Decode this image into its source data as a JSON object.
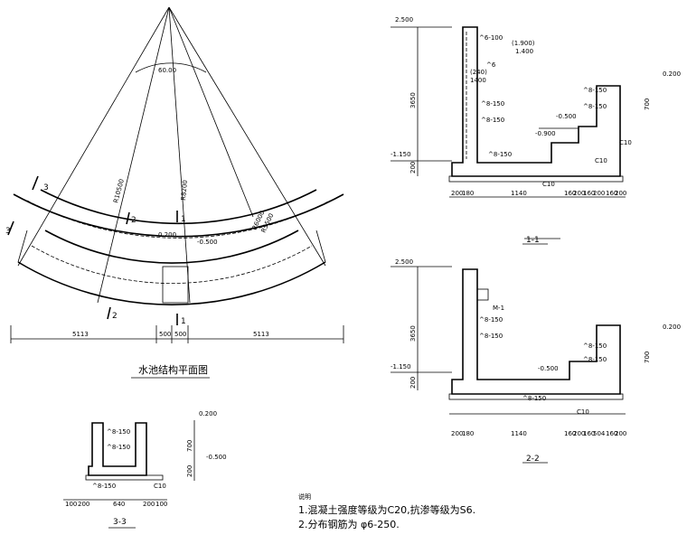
{
  "plan": {
    "angle": "60.00",
    "radii": [
      "R10500",
      "R8200",
      "R6000",
      "R5500"
    ],
    "section_marks": [
      "3",
      "3",
      "2",
      "2",
      "1",
      "1"
    ],
    "levels": [
      "0.200",
      "-0.500"
    ],
    "dims": [
      "5113",
      "500",
      "500",
      "5113"
    ],
    "title": "水池结构平面图"
  },
  "section_1": {
    "title": "1-1",
    "levels": [
      "2.500",
      "-1.150",
      "-0.500",
      "-0.900",
      "0.200"
    ],
    "elevations": [
      "(1.900)",
      "1.400",
      "(240)",
      "1400"
    ],
    "rebar": [
      "^6-100",
      "^6",
      "^8-150",
      "^8-150",
      "^8-150",
      "^8-150",
      "^8-150"
    ],
    "concrete": [
      "C10",
      "C10",
      "C10"
    ],
    "dims_vertical": [
      "3650",
      "200",
      "700"
    ],
    "dims": [
      "200",
      "180",
      "1140",
      "160",
      "200",
      "160",
      "200",
      "160",
      "200"
    ]
  },
  "section_2": {
    "title": "2-2",
    "levels": [
      "2.500",
      "-1.150",
      "-0.500",
      "0.200"
    ],
    "rebar": [
      "^8-150",
      "^8-150",
      "^8-150",
      "^8-150",
      "^8-150"
    ],
    "tag": "M-1",
    "concrete": [
      "C10"
    ],
    "dims_vertical": [
      "3650",
      "200",
      "700"
    ],
    "dims": [
      "200",
      "180",
      "1140",
      "160",
      "200",
      "160",
      "504",
      "160",
      "200"
    ]
  },
  "section_3": {
    "title": "3-3",
    "levels": [
      "0.200",
      "-0.500"
    ],
    "rebar": [
      "^8-150",
      "^8-150",
      "^8-150"
    ],
    "concrete": [
      "C10"
    ],
    "dims_vertical": [
      "700",
      "200"
    ],
    "dims": [
      "100",
      "200",
      "640",
      "200",
      "100"
    ]
  },
  "notes": {
    "heading": "说明",
    "items": [
      "1.混凝土强度等级为C20,抗渗等级为S6.",
      "2.分布钢筋为 φ6-250."
    ]
  }
}
